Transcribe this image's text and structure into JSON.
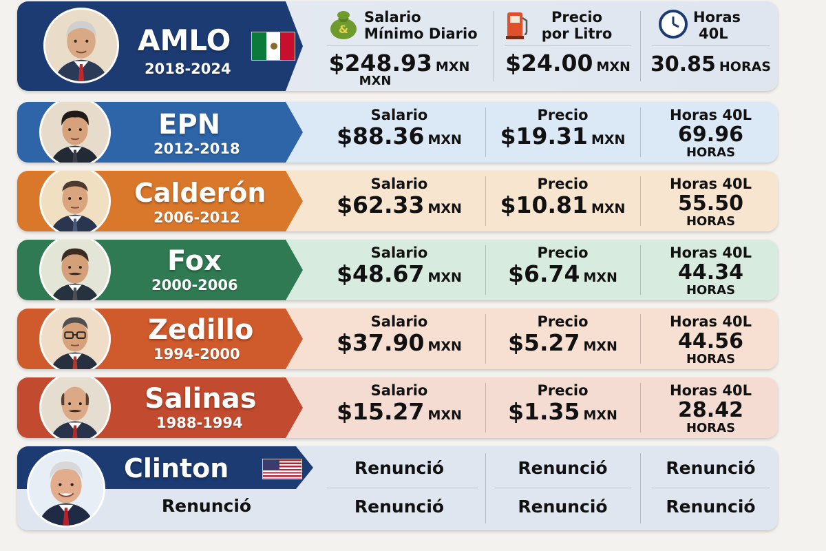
{
  "colors": {
    "amlo": "#1c3b73",
    "epn": "#2e64a8",
    "calderon": "#d9772b",
    "fox": "#2f7a53",
    "zedillo": "#cf5a2c",
    "salinas": "#c24a2e",
    "clinton": "#1c3b73"
  },
  "amlo": {
    "name": "AMLO",
    "years": "2018-2024",
    "flag_icon": "mexico-flag-icon",
    "salario_label_1": "Salario",
    "salario_label_2": "Mínimo Diario",
    "salario_value": "$248.93",
    "salario_unit": "MXN",
    "salario_unit_2": "MXN",
    "precio_label_1": "Precio",
    "precio_label_2": "por Litro",
    "precio_value": "$24.00",
    "precio_unit": "MXN",
    "horas_label_1": "Horas",
    "horas_label_2": "40L",
    "horas_value": "30.85",
    "horas_unit": "HORAS"
  },
  "epn": {
    "name": "EPN",
    "years": "2012-2018",
    "salario_label": "Salario",
    "salario_value": "$88.36",
    "salario_unit": "MXN",
    "precio_label": "Precio",
    "precio_value": "$19.31",
    "precio_unit": "MXN",
    "horas_label": "Horas 40L",
    "horas_value": "69.96",
    "horas_unit": "HORAS"
  },
  "calderon": {
    "name": "Calderón",
    "years": "2006-2012",
    "salario_label": "Salario",
    "salario_value": "$62.33",
    "salario_unit": "MXN",
    "precio_label": "Precio",
    "precio_value": "$10.81",
    "precio_unit": "MXN",
    "horas_label": "Horas 40L",
    "horas_value": "55.50",
    "horas_unit": "HORAS"
  },
  "fox": {
    "name": "Fox",
    "years": "2000-2006",
    "salario_label": "Salario",
    "salario_value": "$48.67",
    "salario_unit": "MXN",
    "precio_label": "Precio",
    "precio_value": "$6.74",
    "precio_unit": "MXN",
    "horas_label": "Horas 40L",
    "horas_value": "44.34",
    "horas_unit": "HORAS"
  },
  "zedillo": {
    "name": "Zedillo",
    "years": "1994-2000",
    "salario_label": "Salario",
    "salario_value": "$37.90",
    "salario_unit": "MXN",
    "precio_label": "Precio",
    "precio_value": "$5.27",
    "precio_unit": "MXN",
    "horas_label": "Horas 40L",
    "horas_value": "44.56",
    "horas_unit": "HORAS"
  },
  "salinas": {
    "name": "Salinas",
    "years": "1988-1994",
    "salario_label": "Salario",
    "salario_value": "$15.27",
    "salario_unit": "MXN",
    "precio_label": "Precio",
    "precio_value": "$1.35",
    "precio_unit": "MXN",
    "horas_label": "Horas 40L",
    "horas_value": "28.42",
    "horas_unit": "HORAS"
  },
  "clinton": {
    "name": "Clinton",
    "flag_icon": "usa-flag-icon",
    "years_text": "Renunció",
    "salario_top": "Renunció",
    "salario_bottom": "Renunció",
    "precio_top": "Renunció",
    "precio_bottom": "Renunció",
    "horas_top": "Renunció",
    "horas_bottom": "Renunció"
  }
}
